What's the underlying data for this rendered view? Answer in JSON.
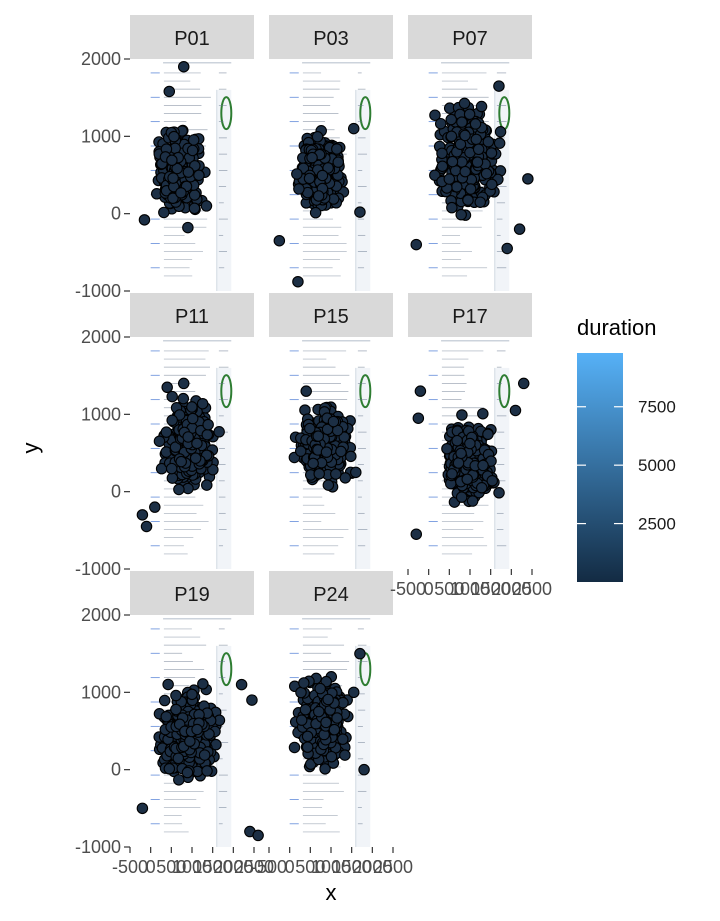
{
  "chart_data": {
    "type": "scatter",
    "title": "",
    "xlabel": "x",
    "ylabel": "y",
    "xlim": [
      -500,
      2500
    ],
    "ylim": [
      -1000,
      2000
    ],
    "x_ticks": [
      -500,
      0,
      500,
      1000,
      1500,
      2000,
      2500
    ],
    "x_tick_labels": [
      "-500",
      "0",
      "500",
      "1000",
      "1500",
      "2000",
      "2500"
    ],
    "y_ticks": [
      -1000,
      0,
      1000,
      2000
    ],
    "y_tick_labels": [
      "-1000",
      "0",
      "1000",
      "2000"
    ],
    "facet_columns": 3,
    "legend": {
      "title": "duration",
      "placement": "right",
      "color_range": [
        0,
        9800
      ],
      "breaks": [
        2500,
        5000,
        7500
      ],
      "break_labels": [
        "2500",
        "5000",
        "7500"
      ],
      "low_color": "#132B43",
      "high_color": "#56B1F7"
    },
    "point_fill": "#1c2f45",
    "point_stroke": "#000000",
    "panels": [
      {
        "label": "P01",
        "cluster": {
          "x": [
            0,
            1400
          ],
          "y": [
            -100,
            1200
          ]
        },
        "extra_points": [
          {
            "x": 800,
            "y": 1900
          },
          {
            "x": 450,
            "y": 1580
          },
          {
            "x": -150,
            "y": -80
          },
          {
            "x": 1350,
            "y": 100
          },
          {
            "x": 900,
            "y": -180
          }
        ]
      },
      {
        "label": "P03",
        "cluster": {
          "x": 50,
          "y": -50,
          "w": 1350,
          "h": 1200
        },
        "extra_points": [
          {
            "x": 200,
            "y": -880
          },
          {
            "x": -250,
            "y": -350
          },
          {
            "x": 1700,
            "y": 20
          },
          {
            "x": 1550,
            "y": 1100
          }
        ]
      },
      {
        "label": "P07",
        "cluster": {
          "x": [
            0,
            1900
          ],
          "y": [
            -150,
            1600
          ]
        },
        "extra_points": [
          {
            "x": -300,
            "y": -400
          },
          {
            "x": 1900,
            "y": -450
          },
          {
            "x": 2400,
            "y": 450
          },
          {
            "x": 2200,
            "y": -200
          },
          {
            "x": 1700,
            "y": 1650
          }
        ]
      },
      {
        "label": "P11",
        "cluster": {
          "x": [
            150,
            1700
          ],
          "y": [
            -100,
            1300
          ]
        },
        "extra_points": [
          {
            "x": -100,
            "y": -450
          },
          {
            "x": -200,
            "y": -300
          },
          {
            "x": 100,
            "y": -200
          },
          {
            "x": 400,
            "y": 1350
          },
          {
            "x": 800,
            "y": 1400
          }
        ]
      },
      {
        "label": "P15",
        "cluster": {
          "x": [
            0,
            1650
          ],
          "y": [
            0,
            1200
          ]
        },
        "extra_points": [
          {
            "x": 400,
            "y": 1300
          },
          {
            "x": 1600,
            "y": 250
          }
        ]
      },
      {
        "label": "P17",
        "cluster": {
          "x": [
            200,
            1800
          ],
          "y": [
            -300,
            1100
          ]
        },
        "extra_points": [
          {
            "x": -300,
            "y": -550
          },
          {
            "x": -200,
            "y": 1300
          },
          {
            "x": -250,
            "y": 950
          },
          {
            "x": 2300,
            "y": 1400
          },
          {
            "x": 2100,
            "y": 1050
          }
        ]
      },
      {
        "label": "P19",
        "cluster": {
          "x": [
            0,
            1800
          ],
          "y": [
            -300,
            1200
          ]
        },
        "extra_points": [
          {
            "x": -200,
            "y": -500
          },
          {
            "x": 2400,
            "y": -800
          },
          {
            "x": 2600,
            "y": -850
          },
          {
            "x": 2450,
            "y": 900
          },
          {
            "x": 2200,
            "y": 1100
          }
        ]
      },
      {
        "label": "P24",
        "cluster": {
          "x": [
            0,
            1600
          ],
          "y": [
            -150,
            1350
          ]
        },
        "extra_points": [
          {
            "x": 1700,
            "y": 1500
          },
          {
            "x": 1550,
            "y": 1000
          },
          {
            "x": 1800,
            "y": 0
          }
        ]
      }
    ]
  }
}
